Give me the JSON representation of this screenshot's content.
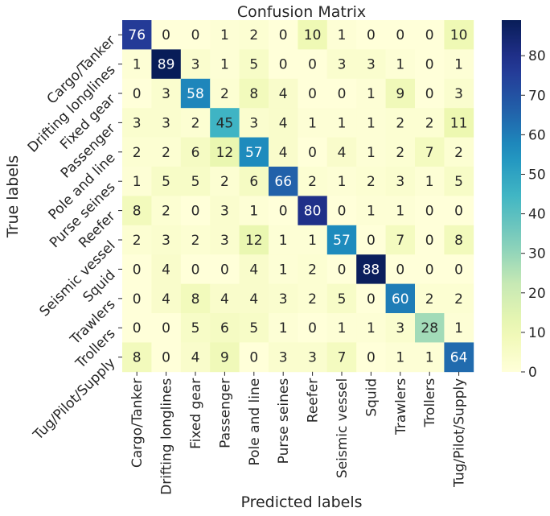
{
  "chart_data": {
    "type": "heatmap",
    "title": "Confusion Matrix",
    "xlabel": "Predicted labels",
    "ylabel": "True labels",
    "x_categories": [
      "Cargo/Tanker",
      "Drifting longlines",
      "Fixed gear",
      "Passenger",
      "Pole and line",
      "Purse seines",
      "Reefer",
      "Seismic vessel",
      "Squid",
      "Trawlers",
      "Trollers",
      "Tug/Pilot/Supply"
    ],
    "y_categories": [
      "Cargo/Tanker",
      "Drifting longlines",
      "Fixed gear",
      "Passenger",
      "Pole and line",
      "Purse seines",
      "Reefer",
      "Seismic vessel",
      "Squid",
      "Trawlers",
      "Trollers",
      "Tug/Pilot/Supply"
    ],
    "matrix": [
      [
        76,
        0,
        0,
        1,
        2,
        0,
        10,
        1,
        0,
        0,
        0,
        10
      ],
      [
        1,
        89,
        3,
        1,
        5,
        0,
        0,
        3,
        3,
        1,
        0,
        1
      ],
      [
        0,
        3,
        58,
        2,
        8,
        4,
        0,
        0,
        1,
        9,
        0,
        3
      ],
      [
        3,
        3,
        2,
        45,
        3,
        4,
        1,
        1,
        1,
        2,
        2,
        11
      ],
      [
        2,
        2,
        6,
        12,
        57,
        4,
        0,
        4,
        1,
        2,
        7,
        2
      ],
      [
        1,
        5,
        5,
        2,
        6,
        66,
        2,
        1,
        2,
        3,
        1,
        5
      ],
      [
        8,
        2,
        0,
        3,
        1,
        0,
        80,
        0,
        1,
        1,
        0,
        0
      ],
      [
        2,
        3,
        2,
        3,
        12,
        1,
        1,
        57,
        0,
        7,
        0,
        8
      ],
      [
        0,
        4,
        0,
        0,
        4,
        1,
        2,
        0,
        88,
        0,
        0,
        0
      ],
      [
        0,
        4,
        8,
        4,
        4,
        3,
        2,
        5,
        0,
        60,
        2,
        2
      ],
      [
        0,
        0,
        5,
        6,
        5,
        1,
        0,
        1,
        1,
        3,
        28,
        1
      ],
      [
        8,
        0,
        4,
        9,
        0,
        3,
        3,
        7,
        0,
        1,
        1,
        64
      ]
    ],
    "colorscale": "YlGnBu",
    "vmin": 0,
    "vmax": 89,
    "colorbar_ticks": [
      0,
      10,
      20,
      30,
      40,
      50,
      60,
      70,
      80
    ]
  }
}
